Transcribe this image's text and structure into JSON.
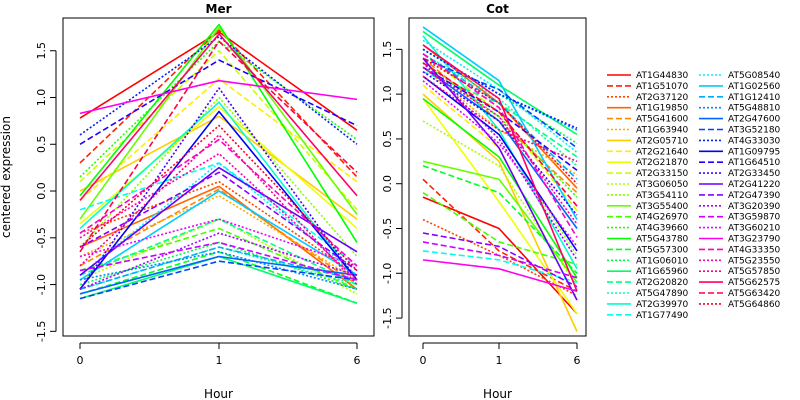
{
  "figure": {
    "ylabel": "centered expression",
    "xlabel": "Hour"
  },
  "chart_data": [
    {
      "type": "line",
      "title": "Mer",
      "xlabel": "Hour",
      "ylabel": "centered expression",
      "x_categories": [
        "0",
        "1",
        "6"
      ],
      "ylim": [
        -1.55,
        1.85
      ],
      "yticks": [
        -1.5,
        -1.0,
        -0.5,
        0.0,
        0.5,
        1.0,
        1.5
      ],
      "ytick_labels": [
        "-1.5",
        "-1.0",
        "-0.5",
        "0.0",
        "0.5",
        "1.0",
        "1.5"
      ],
      "series": [
        {
          "name": "AT1G44830",
          "values": [
            0.78,
            1.7,
            0.65
          ]
        },
        {
          "name": "AT1G51070",
          "values": [
            0.3,
            1.72,
            0.15
          ]
        },
        {
          "name": "AT2G37120",
          "values": [
            -0.45,
            0.1,
            -0.9
          ]
        },
        {
          "name": "AT1G19850",
          "values": [
            -0.6,
            0.05,
            -1.05
          ]
        },
        {
          "name": "AT5G41600",
          "values": [
            -0.8,
            0.02,
            -1.0
          ]
        },
        {
          "name": "AT1G63940",
          "values": [
            -0.7,
            -0.05,
            -0.95
          ]
        },
        {
          "name": "AT2G05710",
          "values": [
            0.0,
            0.8,
            -0.3
          ]
        },
        {
          "name": "AT2G21640",
          "values": [
            -0.1,
            1.2,
            0.1
          ]
        },
        {
          "name": "AT2G21870",
          "values": [
            -0.35,
            0.9,
            -0.4
          ]
        },
        {
          "name": "AT2G33150",
          "values": [
            0.1,
            1.5,
            -0.2
          ]
        },
        {
          "name": "AT3G06050",
          "values": [
            -0.95,
            -0.3,
            -1.1
          ]
        },
        {
          "name": "AT3G54110",
          "values": [
            -0.6,
            1.0,
            -0.7
          ]
        },
        {
          "name": "AT3G55400",
          "values": [
            -0.3,
            1.75,
            -0.25
          ]
        },
        {
          "name": "AT4G26970",
          "values": [
            -0.85,
            -0.4,
            -1.05
          ]
        },
        {
          "name": "AT4G39660",
          "values": [
            0.15,
            1.6,
            0.55
          ]
        },
        {
          "name": "AT5G43780",
          "values": [
            -0.05,
            1.78,
            -0.55
          ]
        },
        {
          "name": "AT5G57300",
          "values": [
            -1.1,
            -0.65,
            -1.2
          ]
        },
        {
          "name": "AT1G06010",
          "values": [
            -1.0,
            -0.55,
            -1.05
          ]
        },
        {
          "name": "AT1G65960",
          "values": [
            -1.15,
            -0.7,
            -1.2
          ]
        },
        {
          "name": "AT2G20820",
          "values": [
            -0.9,
            -0.3,
            -1.0
          ]
        },
        {
          "name": "AT5G47890",
          "values": [
            -1.05,
            -0.6,
            -1.0
          ]
        },
        {
          "name": "AT2G39970",
          "values": [
            -0.4,
            0.95,
            -0.95
          ]
        },
        {
          "name": "AT1G77490",
          "values": [
            -0.2,
            0.3,
            -0.8
          ]
        },
        {
          "name": "AT5G08540",
          "values": [
            -0.9,
            0.3,
            -0.9
          ]
        },
        {
          "name": "AT1G02560",
          "values": [
            -0.95,
            0.0,
            -0.9
          ]
        },
        {
          "name": "AT1G12410",
          "values": [
            -1.05,
            -0.6,
            -0.95
          ]
        },
        {
          "name": "AT5G48810",
          "values": [
            -0.95,
            -0.65,
            -1.05
          ]
        },
        {
          "name": "AT2G47600",
          "values": [
            -1.1,
            -0.7,
            -0.9
          ]
        },
        {
          "name": "AT3G52180",
          "values": [
            -1.15,
            -0.75,
            -0.95
          ]
        },
        {
          "name": "AT4G33030",
          "values": [
            0.6,
            1.65,
            0.5
          ]
        },
        {
          "name": "AT1G09795",
          "values": [
            -1.05,
            0.85,
            -0.95
          ]
        },
        {
          "name": "AT1G64510",
          "values": [
            0.5,
            1.4,
            0.7
          ]
        },
        {
          "name": "AT2G33450",
          "values": [
            -1.05,
            1.1,
            -0.95
          ]
        },
        {
          "name": "AT2G41220",
          "values": [
            -0.9,
            0.25,
            -0.65
          ]
        },
        {
          "name": "AT2G47390",
          "values": [
            -0.6,
            0.2,
            -0.85
          ]
        },
        {
          "name": "AT3G20390",
          "values": [
            -1.05,
            -0.45,
            -0.9
          ]
        },
        {
          "name": "AT3G59870",
          "values": [
            -0.85,
            -0.55,
            -0.95
          ]
        },
        {
          "name": "AT3G60210",
          "values": [
            -0.7,
            -0.3,
            -0.8
          ]
        },
        {
          "name": "AT3G23790",
          "values": [
            0.83,
            1.18,
            0.98
          ]
        },
        {
          "name": "AT4G33350",
          "values": [
            -0.45,
            0.55,
            -0.8
          ]
        },
        {
          "name": "AT5G23550",
          "values": [
            -0.5,
            0.4,
            -0.95
          ]
        },
        {
          "name": "AT5G57850",
          "values": [
            -0.8,
            0.6,
            -1.0
          ]
        },
        {
          "name": "AT5G62575",
          "values": [
            -0.1,
            1.68,
            -0.05
          ]
        },
        {
          "name": "AT5G63420",
          "values": [
            -0.65,
            1.6,
            0.2
          ]
        },
        {
          "name": "AT5G64860",
          "values": [
            -0.6,
            0.7,
            -0.85
          ]
        }
      ]
    },
    {
      "type": "line",
      "title": "Cot",
      "xlabel": "Hour",
      "x_categories": [
        "0",
        "1",
        "6"
      ],
      "ylim": [
        -1.7,
        1.85
      ],
      "yticks": [
        -1.5,
        -1.0,
        -0.5,
        0.0,
        0.5,
        1.0,
        1.5
      ],
      "ytick_labels": [
        "-1.5",
        "-1.0",
        "-0.5",
        "0.0",
        "0.5",
        "1.0",
        "1.5"
      ],
      "series": [
        {
          "name": "AT1G44830",
          "values": [
            -0.15,
            -0.5,
            -1.45
          ]
        },
        {
          "name": "AT1G51070",
          "values": [
            0.05,
            -0.75,
            -1.2
          ]
        },
        {
          "name": "AT2G37120",
          "values": [
            -0.4,
            -0.8,
            -1.25
          ]
        },
        {
          "name": "AT1G19850",
          "values": [
            1.55,
            0.9,
            -0.05
          ]
        },
        {
          "name": "AT5G41600",
          "values": [
            1.4,
            0.7,
            -0.1
          ]
        },
        {
          "name": "AT1G63940",
          "values": [
            1.3,
            0.6,
            0.1
          ]
        },
        {
          "name": "AT2G05710",
          "values": [
            1.0,
            0.25,
            -1.65
          ]
        },
        {
          "name": "AT2G21640",
          "values": [
            1.1,
            0.4,
            -1.3
          ]
        },
        {
          "name": "AT2G21870",
          "values": [
            0.95,
            -0.2,
            -1.45
          ]
        },
        {
          "name": "AT2G33150",
          "values": [
            1.45,
            0.8,
            -0.3
          ]
        },
        {
          "name": "AT3G06050",
          "values": [
            0.7,
            0.2,
            -1.15
          ]
        },
        {
          "name": "AT3G54110",
          "values": [
            1.2,
            0.55,
            -0.8
          ]
        },
        {
          "name": "AT3G55400",
          "values": [
            0.25,
            0.05,
            -1.1
          ]
        },
        {
          "name": "AT4G26970",
          "values": [
            -0.1,
            -0.65,
            -0.9
          ]
        },
        {
          "name": "AT4G39660",
          "values": [
            1.35,
            0.75,
            -0.15
          ]
        },
        {
          "name": "AT5G43780",
          "values": [
            0.95,
            0.3,
            -1.05
          ]
        },
        {
          "name": "AT5G57300",
          "values": [
            0.2,
            -0.1,
            -1.0
          ]
        },
        {
          "name": "AT1G06010",
          "values": [
            1.5,
            1.0,
            0.45
          ]
        },
        {
          "name": "AT1G65960",
          "values": [
            1.7,
            1.1,
            0.55
          ]
        },
        {
          "name": "AT2G20820",
          "values": [
            1.25,
            0.9,
            0.3
          ]
        },
        {
          "name": "AT5G47890",
          "values": [
            1.45,
            0.95,
            0.2
          ]
        },
        {
          "name": "AT2G39970",
          "values": [
            1.65,
            0.6,
            -0.95
          ]
        },
        {
          "name": "AT1G77490",
          "values": [
            -0.75,
            -0.85,
            -1.1
          ]
        },
        {
          "name": "AT5G08540",
          "values": [
            1.6,
            1.05,
            0.35
          ]
        },
        {
          "name": "AT1G02560",
          "values": [
            1.75,
            1.15,
            -0.4
          ]
        },
        {
          "name": "AT1G12410",
          "values": [
            1.45,
            0.9,
            0.05
          ]
        },
        {
          "name": "AT5G48810",
          "values": [
            1.5,
            1.0,
            0.6
          ]
        },
        {
          "name": "AT2G47600",
          "values": [
            1.3,
            0.7,
            -0.5
          ]
        },
        {
          "name": "AT3G52180",
          "values": [
            1.4,
            1.05,
            0.4
          ]
        },
        {
          "name": "AT4G33030",
          "values": [
            1.5,
            1.0,
            0.62
          ]
        },
        {
          "name": "AT1G09795",
          "values": [
            1.2,
            0.55,
            -0.75
          ]
        },
        {
          "name": "AT1G64510",
          "values": [
            1.3,
            0.8,
            0.15
          ]
        },
        {
          "name": "AT2G33450",
          "values": [
            1.25,
            0.7,
            -0.35
          ]
        },
        {
          "name": "AT2G41220",
          "values": [
            1.4,
            0.4,
            -1.3
          ]
        },
        {
          "name": "AT2G47390",
          "values": [
            -0.55,
            -0.7,
            -1.15
          ]
        },
        {
          "name": "AT3G20390",
          "values": [
            1.35,
            0.5,
            -0.85
          ]
        },
        {
          "name": "AT3G59870",
          "values": [
            -0.65,
            -0.8,
            -1.05
          ]
        },
        {
          "name": "AT3G60210",
          "values": [
            1.15,
            0.45,
            -0.7
          ]
        },
        {
          "name": "AT3G23790",
          "values": [
            -0.85,
            -0.95,
            -1.2
          ]
        },
        {
          "name": "AT4G33350",
          "values": [
            1.45,
            0.85,
            -0.6
          ]
        },
        {
          "name": "AT5G23550",
          "values": [
            1.3,
            0.75,
            -0.45
          ]
        },
        {
          "name": "AT5G57850",
          "values": [
            1.2,
            0.6,
            0.25
          ]
        },
        {
          "name": "AT5G62575",
          "values": [
            1.55,
            0.95,
            -1.2
          ]
        },
        {
          "name": "AT5G63420",
          "values": [
            1.35,
            0.8,
            -0.25
          ]
        },
        {
          "name": "AT5G64860",
          "values": [
            1.4,
            0.9,
            0.0
          ]
        }
      ]
    }
  ],
  "legend": {
    "placement": "right",
    "entries": [
      {
        "name": "AT1G44830",
        "color": "#ff0000",
        "dash": "solid"
      },
      {
        "name": "AT1G51070",
        "color": "#ff2200",
        "dash": "dashed"
      },
      {
        "name": "AT2G37120",
        "color": "#ff4400",
        "dash": "dotted"
      },
      {
        "name": "AT1G19850",
        "color": "#ff6600",
        "dash": "solid"
      },
      {
        "name": "AT5G41600",
        "color": "#ff8800",
        "dash": "dashed"
      },
      {
        "name": "AT1G63940",
        "color": "#ffaa00",
        "dash": "dotted"
      },
      {
        "name": "AT2G05710",
        "color": "#ffcc00",
        "dash": "solid"
      },
      {
        "name": "AT2G21640",
        "color": "#ffee00",
        "dash": "dashed"
      },
      {
        "name": "AT2G21870",
        "color": "#eeff00",
        "dash": "solid"
      },
      {
        "name": "AT2G33150",
        "color": "#ccff00",
        "dash": "dashed"
      },
      {
        "name": "AT3G06050",
        "color": "#aaff00",
        "dash": "dotted"
      },
      {
        "name": "AT3G54110",
        "color": "#88ff00",
        "dash": "dotted"
      },
      {
        "name": "AT3G55400",
        "color": "#66ff00",
        "dash": "solid"
      },
      {
        "name": "AT4G26970",
        "color": "#44ff00",
        "dash": "dashed"
      },
      {
        "name": "AT4G39660",
        "color": "#22ff00",
        "dash": "dotted"
      },
      {
        "name": "AT5G43780",
        "color": "#00ff00",
        "dash": "solid"
      },
      {
        "name": "AT5G57300",
        "color": "#00ff22",
        "dash": "dashed"
      },
      {
        "name": "AT1G06010",
        "color": "#00ff44",
        "dash": "dotted"
      },
      {
        "name": "AT1G65960",
        "color": "#00ff66",
        "dash": "solid"
      },
      {
        "name": "AT2G20820",
        "color": "#00ff88",
        "dash": "dashed"
      },
      {
        "name": "AT5G47890",
        "color": "#00ffaa",
        "dash": "dotted"
      },
      {
        "name": "AT2G39970",
        "color": "#00ffcc",
        "dash": "solid"
      },
      {
        "name": "AT1G77490",
        "color": "#00ffee",
        "dash": "dashed"
      },
      {
        "name": "AT5G08540",
        "color": "#00eeff",
        "dash": "dotted"
      },
      {
        "name": "AT1G02560",
        "color": "#00ccff",
        "dash": "solid"
      },
      {
        "name": "AT1G12410",
        "color": "#00aaff",
        "dash": "dashed"
      },
      {
        "name": "AT5G48810",
        "color": "#0088ff",
        "dash": "dotted"
      },
      {
        "name": "AT2G47600",
        "color": "#0066ff",
        "dash": "solid"
      },
      {
        "name": "AT3G52180",
        "color": "#0044ff",
        "dash": "dashed"
      },
      {
        "name": "AT4G33030",
        "color": "#0022ff",
        "dash": "dotted"
      },
      {
        "name": "AT1G09795",
        "color": "#0000ff",
        "dash": "solid"
      },
      {
        "name": "AT1G64510",
        "color": "#2200ff",
        "dash": "dashed"
      },
      {
        "name": "AT2G33450",
        "color": "#4400ff",
        "dash": "dotted"
      },
      {
        "name": "AT2G41220",
        "color": "#6600ff",
        "dash": "solid"
      },
      {
        "name": "AT2G47390",
        "color": "#8800ff",
        "dash": "dashed"
      },
      {
        "name": "AT3G20390",
        "color": "#aa00ff",
        "dash": "dotted"
      },
      {
        "name": "AT3G59870",
        "color": "#cc00ff",
        "dash": "dashed"
      },
      {
        "name": "AT3G60210",
        "color": "#ee00ff",
        "dash": "dotted"
      },
      {
        "name": "AT3G23790",
        "color": "#ff00ee",
        "dash": "solid"
      },
      {
        "name": "AT4G33350",
        "color": "#ff00cc",
        "dash": "dashed"
      },
      {
        "name": "AT5G23550",
        "color": "#ff00aa",
        "dash": "dotted"
      },
      {
        "name": "AT5G57850",
        "color": "#ff0088",
        "dash": "dotted"
      },
      {
        "name": "AT5G62575",
        "color": "#ff0066",
        "dash": "solid"
      },
      {
        "name": "AT5G63420",
        "color": "#ff0044",
        "dash": "dashed"
      },
      {
        "name": "AT5G64860",
        "color": "#ff0022",
        "dash": "dotted"
      }
    ]
  }
}
